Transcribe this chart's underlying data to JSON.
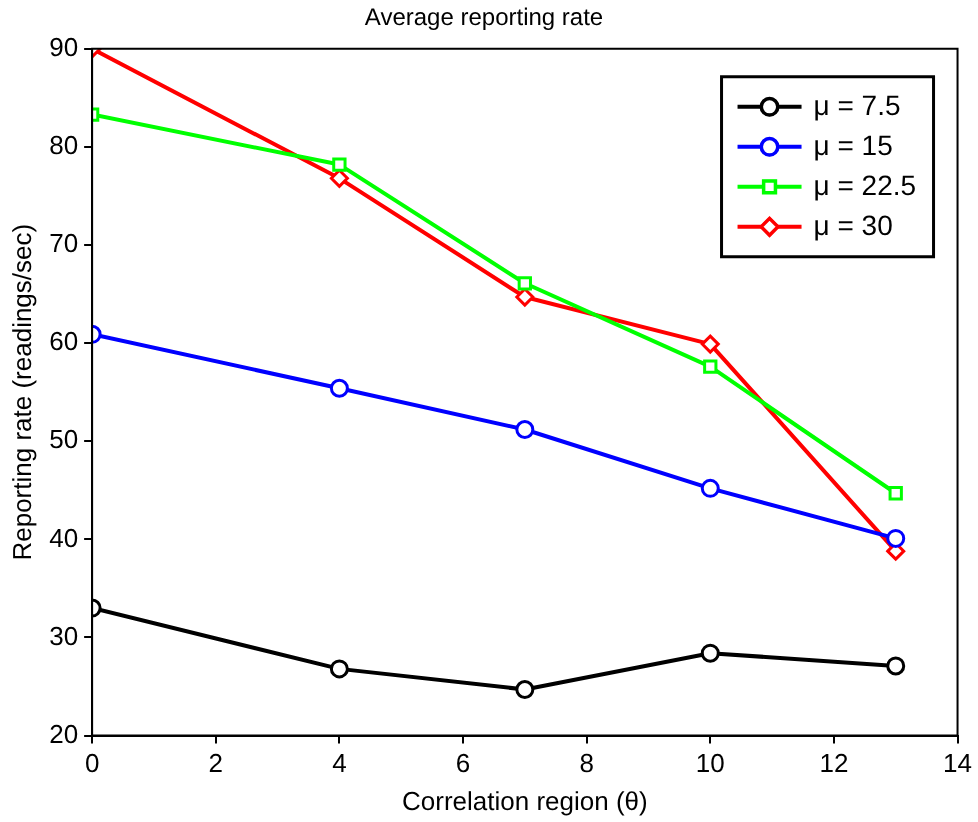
{
  "chart_data": {
    "type": "line",
    "title": "Average reporting rate",
    "xlabel": "Correlation region (θ)",
    "ylabel": "Reporting rate (readings/sec)",
    "x": [
      0,
      4,
      7,
      10,
      13
    ],
    "series": [
      {
        "name": "μ = 7.5",
        "color": "#000000",
        "marker": "circle",
        "values": [
          33,
          26.8,
          24.7,
          28.4,
          27.1
        ]
      },
      {
        "name": "μ = 15",
        "color": "#0000ff",
        "marker": "circle",
        "values": [
          60.9,
          55.4,
          51.2,
          45.2,
          40.1
        ]
      },
      {
        "name": "μ = 22.5",
        "color": "#00ff00",
        "marker": "square",
        "values": [
          83.3,
          78.2,
          66.1,
          57.6,
          44.7
        ]
      },
      {
        "name": "μ = 30",
        "color": "#ff0000",
        "marker": "diamond",
        "values": [
          90,
          76.8,
          64.7,
          59.9,
          38.8
        ]
      }
    ],
    "xlim": [
      0,
      14
    ],
    "xticks": [
      0,
      2,
      4,
      6,
      8,
      10,
      12,
      14
    ],
    "ylim": [
      20,
      90
    ],
    "yticks": [
      20,
      30,
      40,
      50,
      60,
      70,
      80,
      90
    ],
    "grid": false,
    "legend": "top right",
    "line_style": "solid"
  }
}
